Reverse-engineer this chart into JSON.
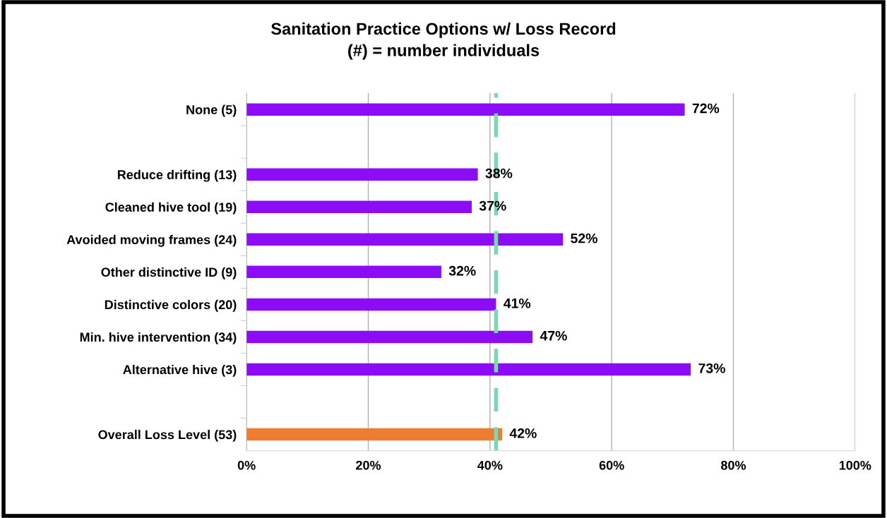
{
  "chart_data": {
    "type": "bar",
    "orientation": "horizontal",
    "title": "Sanitation Practice Options w/ Loss Record\n(#) = number individuals",
    "categories": [
      "None (5)",
      null,
      "Reduce drifting (13)",
      "Cleaned hive tool (19)",
      "Avoided moving frames (24)",
      "Other distinctive ID (9)",
      "Distinctive colors (20)",
      "Min. hive intervention (34)",
      "Alternative hive (3)",
      null,
      "Overall Loss Level (53)"
    ],
    "values": [
      72,
      null,
      38,
      37,
      52,
      32,
      41,
      47,
      73,
      null,
      42
    ],
    "value_labels": [
      "72%",
      null,
      "38%",
      "37%",
      "52%",
      "32%",
      "41%",
      "47%",
      "73%",
      null,
      "42%"
    ],
    "colors": [
      "#8b0cf5",
      "#8b0cf5",
      "#8b0cf5",
      "#8b0cf5",
      "#8b0cf5",
      "#8b0cf5",
      "#8b0cf5",
      "#8b0cf5",
      "#8b0cf5",
      "#8b0cf5",
      "#ed7d31"
    ],
    "xlim": [
      0,
      100
    ],
    "xticks": [
      {
        "value": 0,
        "label": "0%"
      },
      {
        "value": 20,
        "label": "20%"
      },
      {
        "value": 40,
        "label": "40%"
      },
      {
        "value": 60,
        "label": "60%"
      },
      {
        "value": 80,
        "label": "80%"
      },
      {
        "value": 100,
        "label": "100%"
      }
    ],
    "grid": "x",
    "ref_lines": [
      {
        "axis": "x",
        "value": 41,
        "color": "#7fd6b4",
        "line_style": "dashed"
      }
    ]
  }
}
